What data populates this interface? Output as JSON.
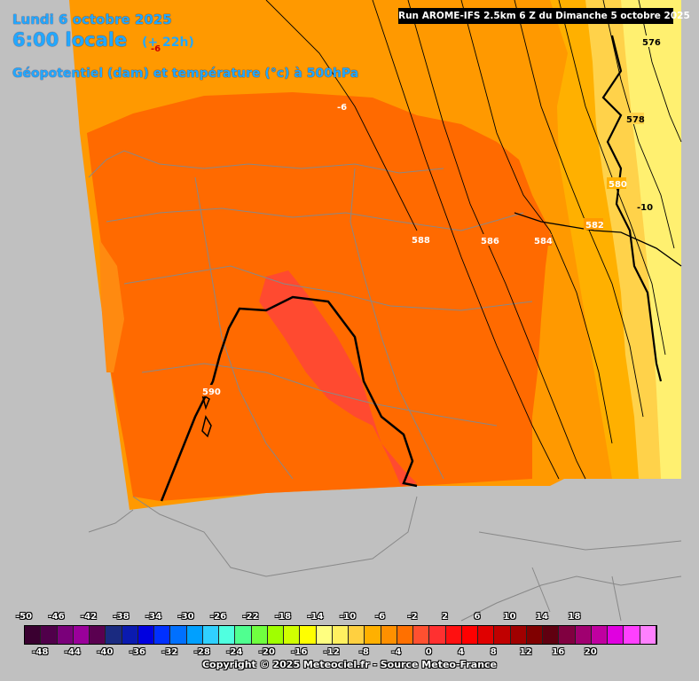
{
  "header": {
    "date": "Lundi 6 octobre 2025",
    "local_time": "6:00 locale",
    "offset": "(+ 22h)",
    "parameter": "Géopotentiel (dam) et température (°c) à 500hPa",
    "run": "Run AROME-IFS 2.5km 6 Z du Dimanche 5 octobre 2025"
  },
  "contours": {
    "geopotential_labels": [
      "576",
      "578",
      "580",
      "582",
      "584",
      "586",
      "588",
      "590"
    ],
    "temperature_labels": [
      "-6",
      "-6",
      "-10"
    ]
  },
  "legend": {
    "top_labels": [
      "-50",
      "-46",
      "-42",
      "-38",
      "-34",
      "-30",
      "-26",
      "-22",
      "-18",
      "-14",
      "-10",
      "-6",
      "-2",
      "2",
      "6",
      "10",
      "14",
      "18"
    ],
    "bottom_labels": [
      "-48",
      "-44",
      "-40",
      "-36",
      "-32",
      "-28",
      "-24",
      "-20",
      "-16",
      "-12",
      "-8",
      "-4",
      "0",
      "4",
      "8",
      "12",
      "16",
      "20"
    ],
    "colors": [
      "#3a0030",
      "#50004a",
      "#7a007a",
      "#9a009a",
      "#5a0050",
      "#1a2a80",
      "#0a1ab0",
      "#0000e0",
      "#0030ff",
      "#0070ff",
      "#00a0ff",
      "#30d0ff",
      "#50ffe0",
      "#50ff90",
      "#70ff40",
      "#a0ff00",
      "#d0ff00",
      "#ffff00",
      "#ffff80",
      "#fff060",
      "#ffd040",
      "#ffb000",
      "#ff9000",
      "#ff7000",
      "#ff5030",
      "#ff3030",
      "#ff1010",
      "#ff0000",
      "#e00000",
      "#c00000",
      "#a00000",
      "#800000",
      "#600010",
      "#800040",
      "#a00070",
      "#c000a0",
      "#e000e0",
      "#ff40ff",
      "#ff80ff"
    ]
  },
  "footer": {
    "copyright": "Copyright © 2025 Meteociel.fr - Source Meteo-France"
  }
}
